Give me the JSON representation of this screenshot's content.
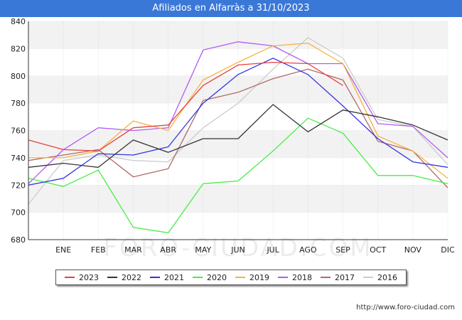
{
  "header": {
    "title": "Afiliados en Alfarràs a 31/10/2023"
  },
  "source": "http://www.foro-ciudad.com",
  "watermark": "FORO-CIUDAD.COM",
  "colors": {
    "header_bg": "#3a78d8",
    "band": "#f2f2f2",
    "axis": "#333333",
    "grid": "#cccccc"
  },
  "chart_data": {
    "type": "line",
    "title": "Afiliados en Alfarràs a 31/10/2023",
    "x": [
      "",
      "ENE",
      "FEB",
      "MAR",
      "ABR",
      "MAY",
      "JUN",
      "JUL",
      "AGO",
      "SEP",
      "OCT",
      "NOV",
      "DIC"
    ],
    "ylim": [
      680,
      840
    ],
    "yticks": [
      680,
      700,
      720,
      740,
      760,
      780,
      800,
      820,
      840
    ],
    "grid": true,
    "legend_position": "bottom",
    "series": [
      {
        "name": "2023",
        "color": "#e8413c",
        "values": [
          753,
          746,
          745,
          762,
          764,
          793,
          808,
          810,
          809,
          793,
          null,
          null,
          null
        ]
      },
      {
        "name": "2022",
        "color": "#333333",
        "values": [
          733,
          736,
          733,
          753,
          744,
          754,
          754,
          779,
          759,
          775,
          770,
          764,
          753
        ]
      },
      {
        "name": "2021",
        "color": "#3434e0",
        "values": [
          720,
          725,
          743,
          742,
          748,
          780,
          801,
          813,
          801,
          778,
          754,
          737,
          733
        ]
      },
      {
        "name": "2020",
        "color": "#44ee44",
        "values": [
          725,
          719,
          731,
          689,
          685,
          721,
          723,
          745,
          769,
          758,
          727,
          727,
          721
        ]
      },
      {
        "name": "2019",
        "color": "#f5b342",
        "values": [
          740,
          740,
          745,
          767,
          760,
          797,
          810,
          822,
          824,
          809,
          756,
          745,
          725
        ]
      },
      {
        "name": "2018",
        "color": "#b25cf0",
        "values": [
          721,
          746,
          762,
          760,
          762,
          819,
          825,
          822,
          809,
          809,
          765,
          763,
          740
        ]
      },
      {
        "name": "2017",
        "color": "#b06a6a",
        "values": [
          738,
          742,
          746,
          726,
          732,
          782,
          788,
          798,
          805,
          797,
          752,
          745,
          718
        ]
      },
      {
        "name": "2016",
        "color": "#cccccc",
        "values": [
          706,
          738,
          742,
          738,
          737,
          762,
          780,
          805,
          828,
          813,
          768,
          763,
          735
        ]
      }
    ]
  }
}
